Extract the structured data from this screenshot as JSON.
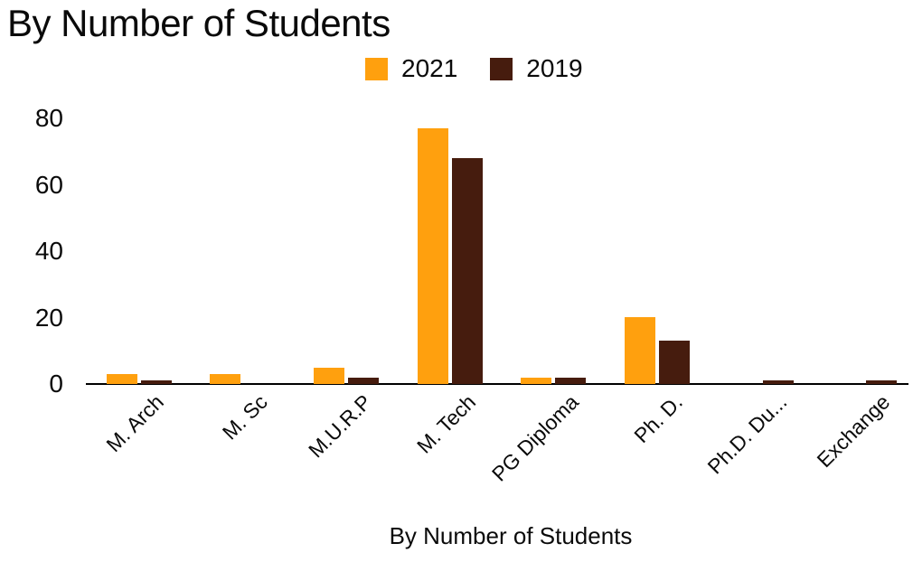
{
  "chart_data": {
    "type": "bar",
    "title": "By Number of Students",
    "xlabel": "By Number of Students",
    "ylabel": "",
    "categories": [
      "M. Arch",
      "M. Sc",
      "M.U.R.P",
      "M. Tech",
      "PG Diploma",
      "Ph. D.",
      "Ph.D. Du...",
      "Exchange"
    ],
    "series": [
      {
        "name": "2021",
        "color": "#FFA00E",
        "values": [
          3,
          3,
          5,
          77,
          2,
          20,
          0,
          0
        ]
      },
      {
        "name": "2019",
        "color": "#461C0E",
        "values": [
          1,
          0,
          2,
          68,
          2,
          13,
          1,
          1
        ]
      }
    ],
    "ylim": [
      0,
      80
    ],
    "yticks": [
      0,
      20,
      40,
      60,
      80
    ],
    "grid": false,
    "legend_position": "top"
  }
}
